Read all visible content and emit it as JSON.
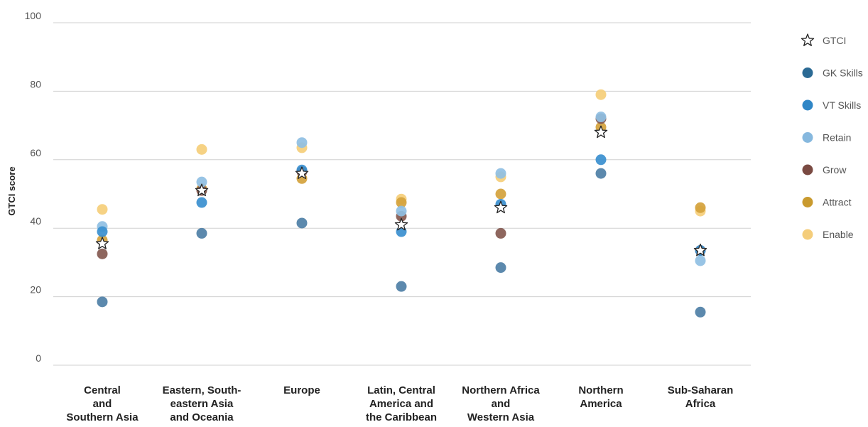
{
  "chart_data": {
    "type": "scatter",
    "ylabel": "GTCI score",
    "ylim": [
      0,
      100
    ],
    "yticks": [
      0,
      20,
      40,
      60,
      80,
      100
    ],
    "grid": true,
    "legend_position": "right",
    "categories": [
      [
        "Central",
        "and",
        "Southern Asia"
      ],
      [
        "Eastern, South-",
        "eastern Asia",
        "and Oceania"
      ],
      [
        "Europe"
      ],
      [
        "Latin, Central",
        "America and",
        "the Caribbean"
      ],
      [
        "Northern Africa",
        "and",
        "Western Asia"
      ],
      [
        "Northern",
        "America"
      ],
      [
        "Sub-Saharan",
        "Africa"
      ]
    ],
    "series": [
      {
        "name": "Enable",
        "color": "#f5ce7a",
        "marker": "circle",
        "values": [
          45.5,
          63,
          63.5,
          48.5,
          55,
          79,
          45
        ]
      },
      {
        "name": "Attract",
        "color": "#d4a23c",
        "marker": "circle",
        "values": [
          36.5,
          51.5,
          54.5,
          47.5,
          50,
          69.5,
          46
        ]
      },
      {
        "name": "Grow",
        "color": "#845950",
        "marker": "circle",
        "values": [
          32.5,
          51,
          56.5,
          43.5,
          38.5,
          72,
          33.5
        ]
      },
      {
        "name": "Retain",
        "color": "#8fbfe3",
        "marker": "circle",
        "values": [
          40.5,
          53.5,
          65,
          45,
          56,
          72.5,
          30.5
        ]
      },
      {
        "name": "VT Skills",
        "color": "#3a8fcf",
        "marker": "circle",
        "values": [
          39,
          47.5,
          57,
          39,
          47,
          60,
          33.5
        ]
      },
      {
        "name": "GK Skills",
        "color": "#4e7fa6",
        "marker": "circle",
        "values": [
          18.5,
          38.5,
          41.5,
          23,
          28.5,
          56,
          15.5
        ]
      },
      {
        "name": "GTCI",
        "color": "#222222",
        "marker": "star",
        "values": [
          35.5,
          51,
          56,
          41,
          46,
          68,
          33.5
        ]
      }
    ],
    "legend_order": [
      "GTCI",
      "GK Skills",
      "VT Skills",
      "Retain",
      "Grow",
      "Attract",
      "Enable"
    ],
    "legend_colors": {
      "GTCI": "#222222",
      "GK Skills": "#2b6a94",
      "VT Skills": "#2f86c6",
      "Retain": "#86b8de",
      "Grow": "#7a4a42",
      "Attract": "#c99a2e",
      "Enable": "#f4cd7b"
    }
  }
}
